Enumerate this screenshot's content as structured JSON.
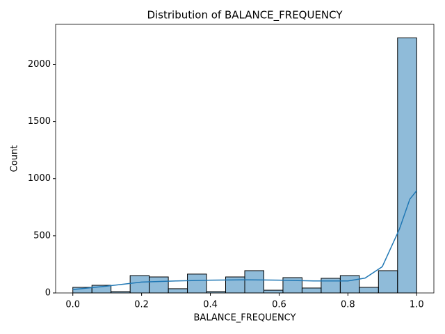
{
  "chart_data": {
    "type": "histogram",
    "title": "Distribution of BALANCE_FREQUENCY",
    "x_label": "BALANCE_FREQUENCY",
    "y_label": "Count",
    "bins": [
      0,
      0.0556,
      0.1111,
      0.1667,
      0.2222,
      0.2778,
      0.3333,
      0.3889,
      0.4444,
      0.5,
      0.5556,
      0.6111,
      0.6667,
      0.7222,
      0.7778,
      0.8333,
      0.8889,
      0.9444,
      1
    ],
    "values": [
      49,
      67,
      12,
      152,
      140,
      37,
      165,
      12,
      140,
      195,
      24,
      134,
      43,
      128,
      152,
      49,
      195,
      2232
    ],
    "color": "#1f77b4",
    "kde": {
      "x": [
        0,
        0.1,
        0.2,
        0.3,
        0.4,
        0.5,
        0.6,
        0.7,
        0.8,
        0.85,
        0.9,
        0.95,
        0.98,
        1
      ],
      "values": [
        30,
        60,
        95,
        105,
        112,
        115,
        112,
        105,
        105,
        130,
        230,
        560,
        820,
        895
      ]
    },
    "xlim": [
      -0.05,
      1.05
    ],
    "ylim": [
      0,
      2350
    ],
    "xticks": [
      {
        "value": 0,
        "label": "0.0"
      },
      0.2,
      0.4,
      0.6,
      0.8,
      {
        "value": 1,
        "label": "1.0"
      }
    ],
    "yticks": [
      0,
      500,
      1000,
      1500,
      2000
    ]
  }
}
